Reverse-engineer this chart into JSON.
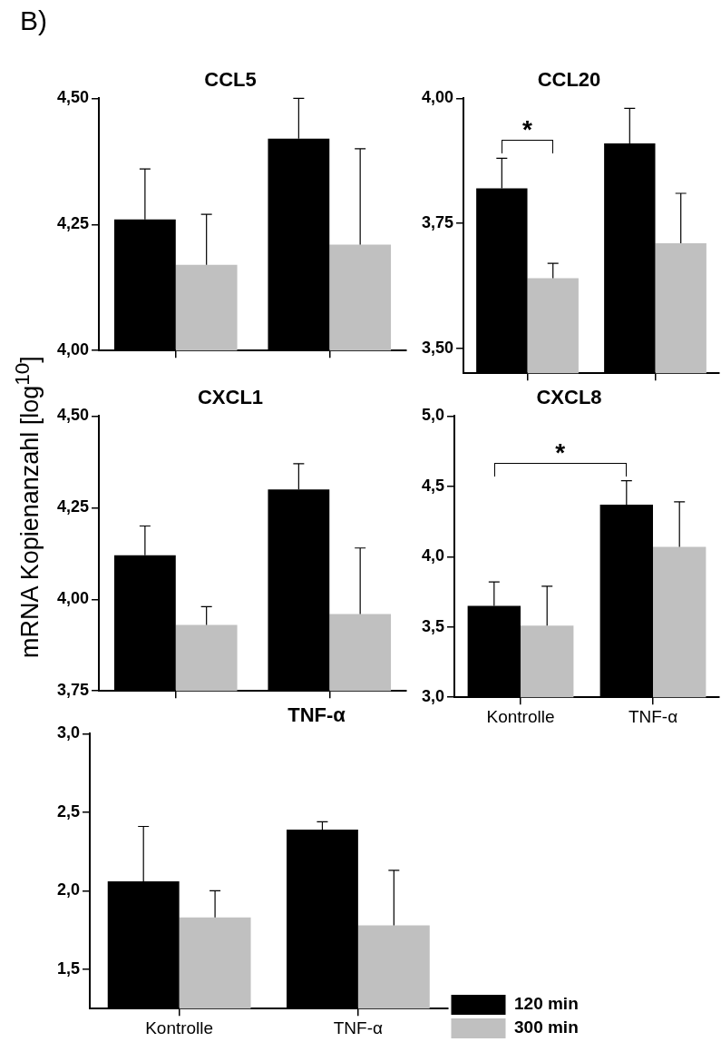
{
  "chart_data": [
    {
      "type": "bar",
      "title": "CCL5",
      "ylabel": "mRNA Kopienanzahl [log$^{10}$]",
      "annotations": [
        "B)"
      ],
      "categories": [
        null,
        null
      ],
      "tick_labels": "y",
      "ylim": [
        4.0,
        4.5
      ],
      "yticks": [
        {
          "value": 4.0,
          "label": "4,00"
        },
        {
          "value": 4.25,
          "label": "4,25"
        },
        {
          "value": 4.5,
          "label": "4,50"
        }
      ],
      "grid": false,
      "legend": false,
      "series": [
        {
          "color": "#000000",
          "values": [
            4.26,
            4.42
          ],
          "errors": [
            [
              4.26,
              4.36
            ],
            [
              4.42,
              4.5
            ]
          ]
        },
        {
          "color": "#c0c0c0",
          "values": [
            4.17,
            4.21
          ],
          "errors": [
            [
              4.17,
              4.27
            ],
            [
              4.21,
              4.4
            ]
          ]
        }
      ]
    },
    {
      "type": "bar",
      "title": "CCL20",
      "annotations": [
        "*"
      ],
      "categories": [
        null,
        null
      ],
      "tick_labels": "y",
      "ylim": [
        3.45,
        4.0
      ],
      "yticks": [
        {
          "value": 3.5,
          "label": "3,50"
        },
        {
          "value": 3.75,
          "label": "3,75"
        },
        {
          "value": 4.0,
          "label": "4,00"
        }
      ],
      "grid": false,
      "legend": false,
      "series": [
        {
          "color": "#000000",
          "values": [
            3.82,
            3.91
          ],
          "errors": [
            [
              3.82,
              3.88
            ],
            [
              3.91,
              3.98
            ]
          ]
        },
        {
          "color": "#c0c0c0",
          "values": [
            3.64,
            3.71
          ],
          "errors": [
            [
              3.64,
              3.67
            ],
            [
              3.71,
              3.81
            ]
          ]
        }
      ]
    },
    {
      "type": "bar",
      "title": "CXCL1",
      "categories": [
        null,
        null
      ],
      "tick_labels": "y",
      "ylim": [
        3.75,
        4.5
      ],
      "yticks": [
        {
          "value": 3.75,
          "label": "3,75"
        },
        {
          "value": 4.0,
          "label": "4,00"
        },
        {
          "value": 4.25,
          "label": "4,25"
        },
        {
          "value": 4.5,
          "label": "4,50"
        }
      ],
      "grid": false,
      "legend": false,
      "series": [
        {
          "color": "#000000",
          "values": [
            4.12,
            4.3
          ],
          "errors": [
            [
              4.12,
              4.2
            ],
            [
              4.3,
              4.37
            ]
          ]
        },
        {
          "color": "#c0c0c0",
          "values": [
            3.93,
            3.96
          ],
          "errors": [
            [
              3.93,
              3.98
            ],
            [
              3.96,
              4.14
            ]
          ]
        }
      ]
    },
    {
      "type": "bar",
      "title": "CXCL8",
      "annotations": [
        "*"
      ],
      "categories": [
        "Kontrolle",
        "TNF-α"
      ],
      "ylim": [
        3.0,
        5.0
      ],
      "yticks": [
        {
          "value": 3.0,
          "label": "3,0"
        },
        {
          "value": 3.5,
          "label": "3,5"
        },
        {
          "value": 4.0,
          "label": "4,0"
        },
        {
          "value": 4.5,
          "label": "4,5"
        },
        {
          "value": 5.0,
          "label": "5,0"
        }
      ],
      "grid": false,
      "legend": false,
      "series": [
        {
          "color": "#000000",
          "values": [
            3.65,
            4.37
          ],
          "errors": [
            [
              3.65,
              3.82
            ],
            [
              4.37,
              4.54
            ]
          ]
        },
        {
          "color": "#c0c0c0",
          "values": [
            3.51,
            4.07
          ],
          "errors": [
            [
              3.51,
              3.79
            ],
            [
              4.07,
              4.39
            ]
          ]
        }
      ]
    },
    {
      "type": "bar",
      "title": "TNF-α",
      "categories": [
        "Kontrolle",
        "TNF-α"
      ],
      "ylim": [
        1.25,
        3.0
      ],
      "yticks": [
        {
          "value": 1.5,
          "label": "1,5"
        },
        {
          "value": 2.0,
          "label": "2,0"
        },
        {
          "value": 2.5,
          "label": "2,5"
        },
        {
          "value": 3.0,
          "label": "3,0"
        }
      ],
      "grid": false,
      "legend": "right",
      "series": [
        {
          "name": "120 min",
          "color": "#000000",
          "values": [
            2.06,
            2.39
          ],
          "errors": [
            [
              2.06,
              2.41
            ],
            [
              2.39,
              2.44
            ]
          ]
        },
        {
          "name": "300 min",
          "color": "#c0c0c0",
          "values": [
            1.83,
            1.78
          ],
          "errors": [
            [
              1.83,
              2.0
            ],
            [
              1.78,
              2.13
            ]
          ]
        }
      ]
    }
  ]
}
